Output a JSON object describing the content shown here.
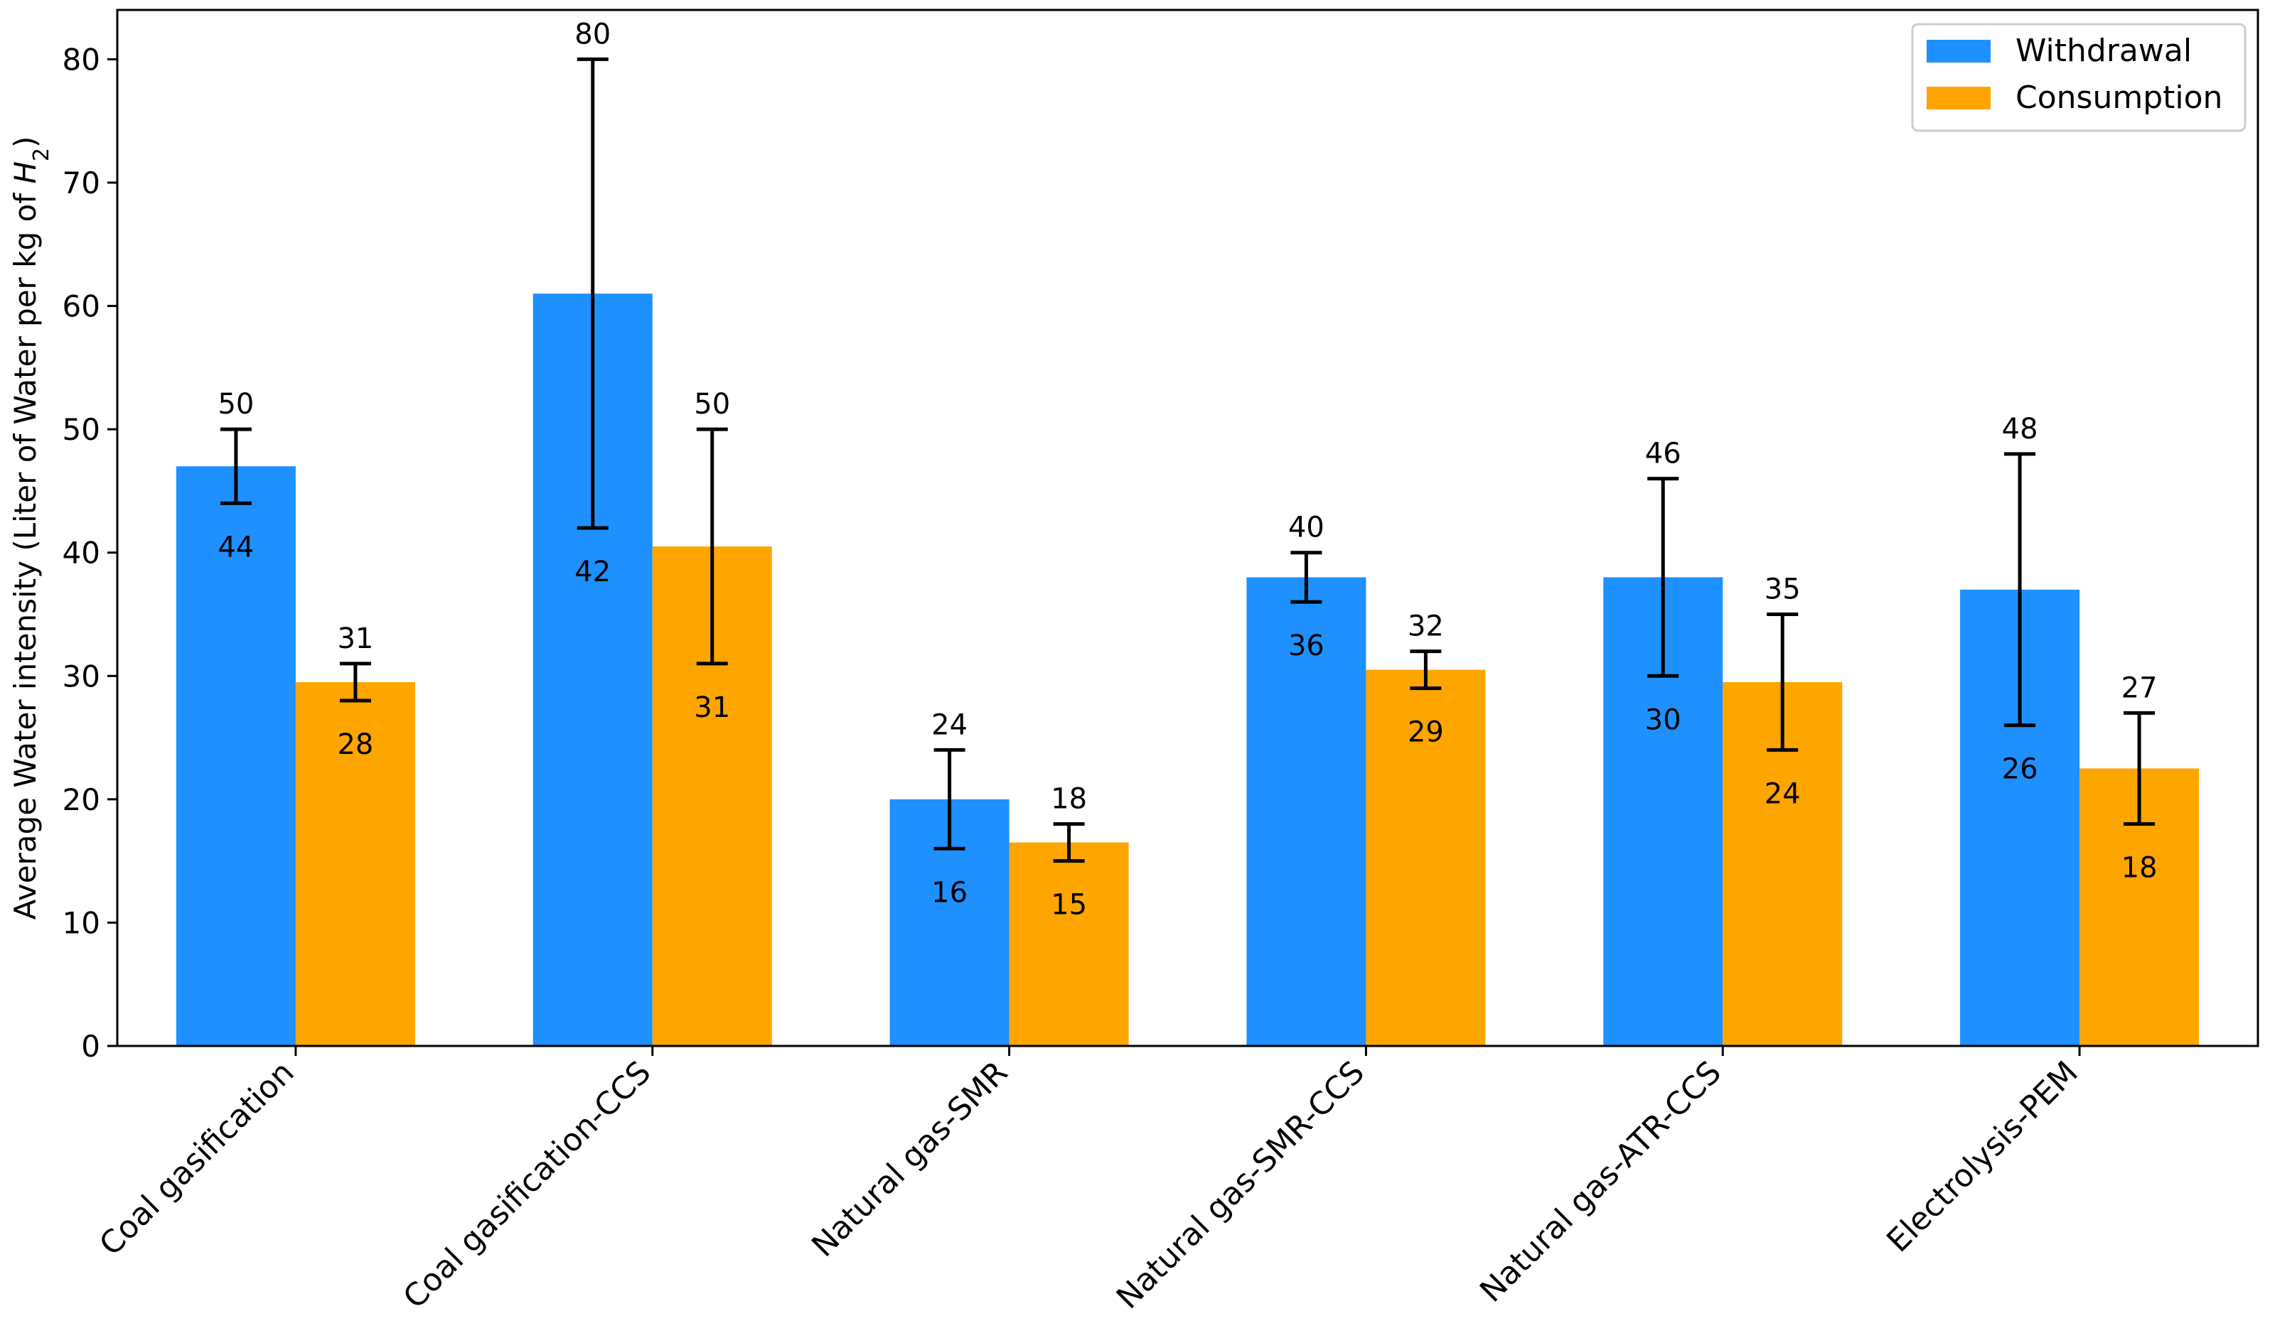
{
  "chart_data": {
    "type": "bar",
    "title": "",
    "xlabel": "",
    "ylabel_prefix": "Average Water intensity (Liter of Water per kg of ",
    "ylabel_var": "H",
    "ylabel_sub": "2",
    "ylabel_suffix": ")",
    "ylim": [
      0,
      84
    ],
    "yticks": [
      0,
      10,
      20,
      30,
      40,
      50,
      60,
      70,
      80
    ],
    "categories": [
      "Coal gasification",
      "Coal gasification-CCS",
      "Natural gas-SMR",
      "Natural gas-SMR-CCS",
      "Natural gas-ATR-CCS",
      "Electrolysis-PEM"
    ],
    "series": [
      {
        "name": "Withdrawal",
        "color": "#1e90ff",
        "values": [
          47,
          61,
          20,
          38,
          38,
          37
        ],
        "err_low": [
          44,
          42,
          16,
          36,
          30,
          26
        ],
        "err_high": [
          50,
          80,
          24,
          40,
          46,
          48
        ]
      },
      {
        "name": "Consumption",
        "color": "#ffa500",
        "values": [
          29.5,
          40.5,
          16.5,
          30.5,
          29.5,
          22.5
        ],
        "err_low": [
          28,
          31,
          15,
          29,
          24,
          18
        ],
        "err_high": [
          31,
          50,
          18,
          32,
          35,
          27
        ]
      }
    ],
    "legend": {
      "position": "top-right",
      "entries": [
        "Withdrawal",
        "Consumption"
      ]
    },
    "grid": false
  }
}
